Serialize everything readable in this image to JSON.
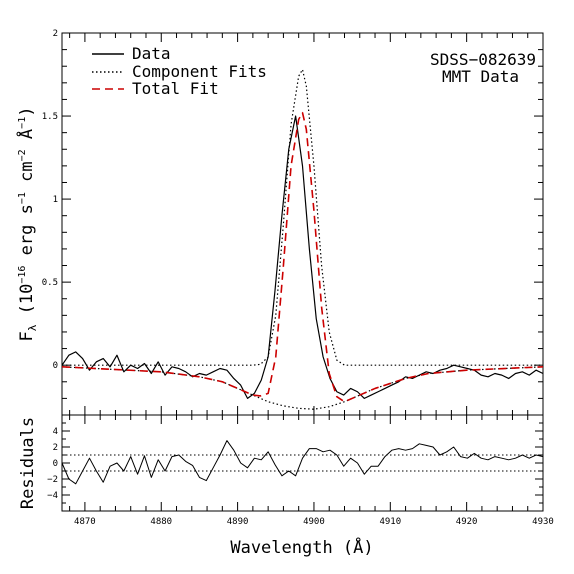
{
  "chart_data": [
    {
      "type": "line",
      "panel": "main",
      "xlim": [
        4867,
        4930
      ],
      "ylim": [
        -0.3,
        2.0
      ],
      "xlabel": "",
      "ylabel": "F",
      "ylabel_sub": "λ",
      "ylabel_units": "(10",
      "ylabel_exp1": "−16",
      "ylabel_part2": "erg s",
      "ylabel_exp2": "−1",
      "ylabel_part3": "cm",
      "ylabel_exp3": "−2",
      "ylabel_part4": "Å",
      "ylabel_exp4": "−1",
      "ylabel_close": ")",
      "yticks": [
        0,
        0.5,
        1,
        1.5,
        2
      ],
      "ytick_labels": [
        "0",
        "0.5",
        "1",
        "1.5",
        "2"
      ],
      "grid": false,
      "legend_position": "top-left",
      "legend": [
        {
          "label": "Data",
          "style": "solid",
          "color": "#000000"
        },
        {
          "label": "Component Fits",
          "style": "dotted",
          "color": "#000000"
        },
        {
          "label": "Total Fit",
          "style": "dashed",
          "color": "#cc0000"
        }
      ],
      "annotations": [
        "SDSS−082639",
        "MMT Data"
      ],
      "series": [
        {
          "name": "Data",
          "style": "solid",
          "color": "#000000",
          "x": [
            4867.0,
            4867.9,
            4868.8,
            4869.7,
            4870.6,
            4871.5,
            4872.4,
            4873.3,
            4874.2,
            4875.1,
            4876.0,
            4876.9,
            4877.8,
            4878.7,
            4879.6,
            4880.5,
            4881.4,
            4882.3,
            4883.2,
            4884.1,
            4885.0,
            4885.9,
            4886.8,
            4887.7,
            4888.6,
            4889.5,
            4890.4,
            4891.3,
            4892.2,
            4893.1,
            4894.0,
            4894.9,
            4895.8,
            4896.7,
            4897.6,
            4898.5,
            4899.4,
            4900.3,
            4901.2,
            4902.1,
            4903.0,
            4903.9,
            4904.8,
            4905.7,
            4906.6,
            4907.5,
            4908.4,
            4909.3,
            4910.2,
            4911.1,
            4912.0,
            4912.9,
            4913.8,
            4914.7,
            4915.6,
            4916.5,
            4917.4,
            4918.3,
            4919.2,
            4920.1,
            4921.0,
            4921.9,
            4922.8,
            4923.7,
            4924.6,
            4925.5,
            4926.4,
            4927.3,
            4928.2,
            4929.1,
            4930.0
          ],
          "y": [
            0.0,
            0.06,
            0.08,
            0.04,
            -0.03,
            0.02,
            0.04,
            -0.01,
            0.06,
            -0.04,
            0.0,
            -0.02,
            0.01,
            -0.05,
            0.02,
            -0.06,
            -0.01,
            -0.02,
            -0.04,
            -0.07,
            -0.05,
            -0.06,
            -0.04,
            -0.02,
            -0.03,
            -0.08,
            -0.12,
            -0.2,
            -0.17,
            -0.09,
            0.05,
            0.45,
            0.9,
            1.3,
            1.5,
            1.2,
            0.7,
            0.28,
            0.05,
            -0.08,
            -0.16,
            -0.18,
            -0.14,
            -0.16,
            -0.2,
            -0.18,
            -0.16,
            -0.14,
            -0.12,
            -0.1,
            -0.07,
            -0.08,
            -0.06,
            -0.04,
            -0.05,
            -0.03,
            -0.02,
            0.0,
            -0.01,
            -0.02,
            -0.03,
            -0.06,
            -0.07,
            -0.05,
            -0.06,
            -0.08,
            -0.05,
            -0.04,
            -0.06,
            -0.03,
            -0.05
          ]
        },
        {
          "name": "Component Fits",
          "role": "narrow",
          "style": "dotted",
          "color": "#000000",
          "x": [
            4867,
            4888,
            4892,
            4893,
            4894,
            4895,
            4896,
            4897,
            4898,
            4898.5,
            4899,
            4900,
            4901,
            4902,
            4903,
            4904,
            4910,
            4930
          ],
          "y": [
            0.0,
            0.0,
            0.0,
            0.005,
            0.05,
            0.3,
            0.85,
            1.45,
            1.74,
            1.78,
            1.68,
            1.2,
            0.6,
            0.2,
            0.03,
            0.0,
            0.0,
            0.0
          ]
        },
        {
          "name": "Component Fits",
          "role": "broad",
          "style": "dotted",
          "color": "#000000",
          "x": [
            4867,
            4880,
            4885,
            4888,
            4890,
            4892,
            4894,
            4896,
            4898,
            4900,
            4902,
            4904,
            4906,
            4908,
            4910,
            4912,
            4915,
            4920,
            4930
          ],
          "y": [
            -0.01,
            -0.04,
            -0.07,
            -0.1,
            -0.14,
            -0.18,
            -0.22,
            -0.245,
            -0.26,
            -0.265,
            -0.25,
            -0.22,
            -0.18,
            -0.14,
            -0.11,
            -0.08,
            -0.05,
            -0.03,
            -0.01
          ]
        },
        {
          "name": "Total Fit",
          "style": "dashed",
          "color": "#cc0000",
          "x": [
            4867,
            4880,
            4885,
            4888,
            4890,
            4892,
            4893,
            4894,
            4895,
            4896,
            4897,
            4898,
            4898.5,
            4899,
            4900,
            4901,
            4902,
            4903,
            4904,
            4906,
            4908,
            4910,
            4912,
            4915,
            4920,
            4930
          ],
          "y": [
            -0.01,
            -0.04,
            -0.07,
            -0.1,
            -0.14,
            -0.18,
            -0.185,
            -0.17,
            0.05,
            0.6,
            1.2,
            1.48,
            1.52,
            1.42,
            0.93,
            0.35,
            -0.05,
            -0.19,
            -0.22,
            -0.18,
            -0.14,
            -0.11,
            -0.08,
            -0.05,
            -0.03,
            -0.01
          ]
        }
      ]
    },
    {
      "type": "line",
      "panel": "residuals",
      "xlim": [
        4867,
        4930
      ],
      "ylim": [
        -6,
        6
      ],
      "xlabel": "Wavelength (Å)",
      "ylabel": "Residuals",
      "xticks": [
        4870,
        4880,
        4890,
        4900,
        4910,
        4920,
        4930
      ],
      "xtick_labels": [
        "4870",
        "4880",
        "4890",
        "4900",
        "4910",
        "4920",
        "4930"
      ],
      "yticks": [
        -4,
        -2,
        0,
        2,
        4
      ],
      "ytick_labels": [
        "−4",
        "−2",
        "0",
        "2",
        "4"
      ],
      "reference_lines": [
        -1,
        1
      ],
      "grid": false,
      "series": [
        {
          "name": "Residuals",
          "style": "solid",
          "color": "#000000",
          "x": [
            4867.0,
            4867.9,
            4868.8,
            4869.7,
            4870.6,
            4871.5,
            4872.4,
            4873.3,
            4874.2,
            4875.1,
            4876.0,
            4876.9,
            4877.8,
            4878.7,
            4879.6,
            4880.5,
            4881.4,
            4882.3,
            4883.2,
            4884.1,
            4885.0,
            4885.9,
            4886.8,
            4887.7,
            4888.6,
            4889.5,
            4890.4,
            4891.3,
            4892.2,
            4893.1,
            4894.0,
            4894.9,
            4895.8,
            4896.7,
            4897.6,
            4898.5,
            4899.4,
            4900.3,
            4901.2,
            4902.1,
            4903.0,
            4903.9,
            4904.8,
            4905.7,
            4906.6,
            4907.5,
            4908.4,
            4909.3,
            4910.2,
            4911.1,
            4912.0,
            4912.9,
            4913.8,
            4914.7,
            4915.6,
            4916.5,
            4917.4,
            4918.3,
            4919.2,
            4920.1,
            4921.0,
            4921.9,
            4922.8,
            4923.7,
            4924.6,
            4925.5,
            4926.4,
            4927.3,
            4928.2,
            4929.1,
            4930.0
          ],
          "y": [
            0.0,
            -2.0,
            -2.6,
            -1.0,
            0.6,
            -1.0,
            -2.4,
            -0.4,
            0.0,
            -1.0,
            0.8,
            -1.4,
            0.9,
            -1.8,
            0.4,
            -1.0,
            0.8,
            1.0,
            0.2,
            -0.3,
            -1.8,
            -2.2,
            -0.6,
            1.0,
            2.8,
            1.6,
            0.0,
            -0.6,
            0.6,
            0.4,
            1.4,
            -0.2,
            -1.6,
            -1.0,
            -1.6,
            0.6,
            1.8,
            1.8,
            1.4,
            1.6,
            1.0,
            -0.4,
            0.6,
            0.0,
            -1.4,
            -0.4,
            -0.4,
            0.8,
            1.6,
            1.8,
            1.6,
            1.8,
            2.4,
            2.2,
            2.0,
            1.0,
            1.4,
            2.0,
            0.8,
            0.6,
            1.2,
            0.6,
            0.4,
            0.8,
            0.6,
            0.4,
            0.6,
            1.0,
            0.6,
            1.0,
            0.8
          ]
        }
      ]
    }
  ]
}
